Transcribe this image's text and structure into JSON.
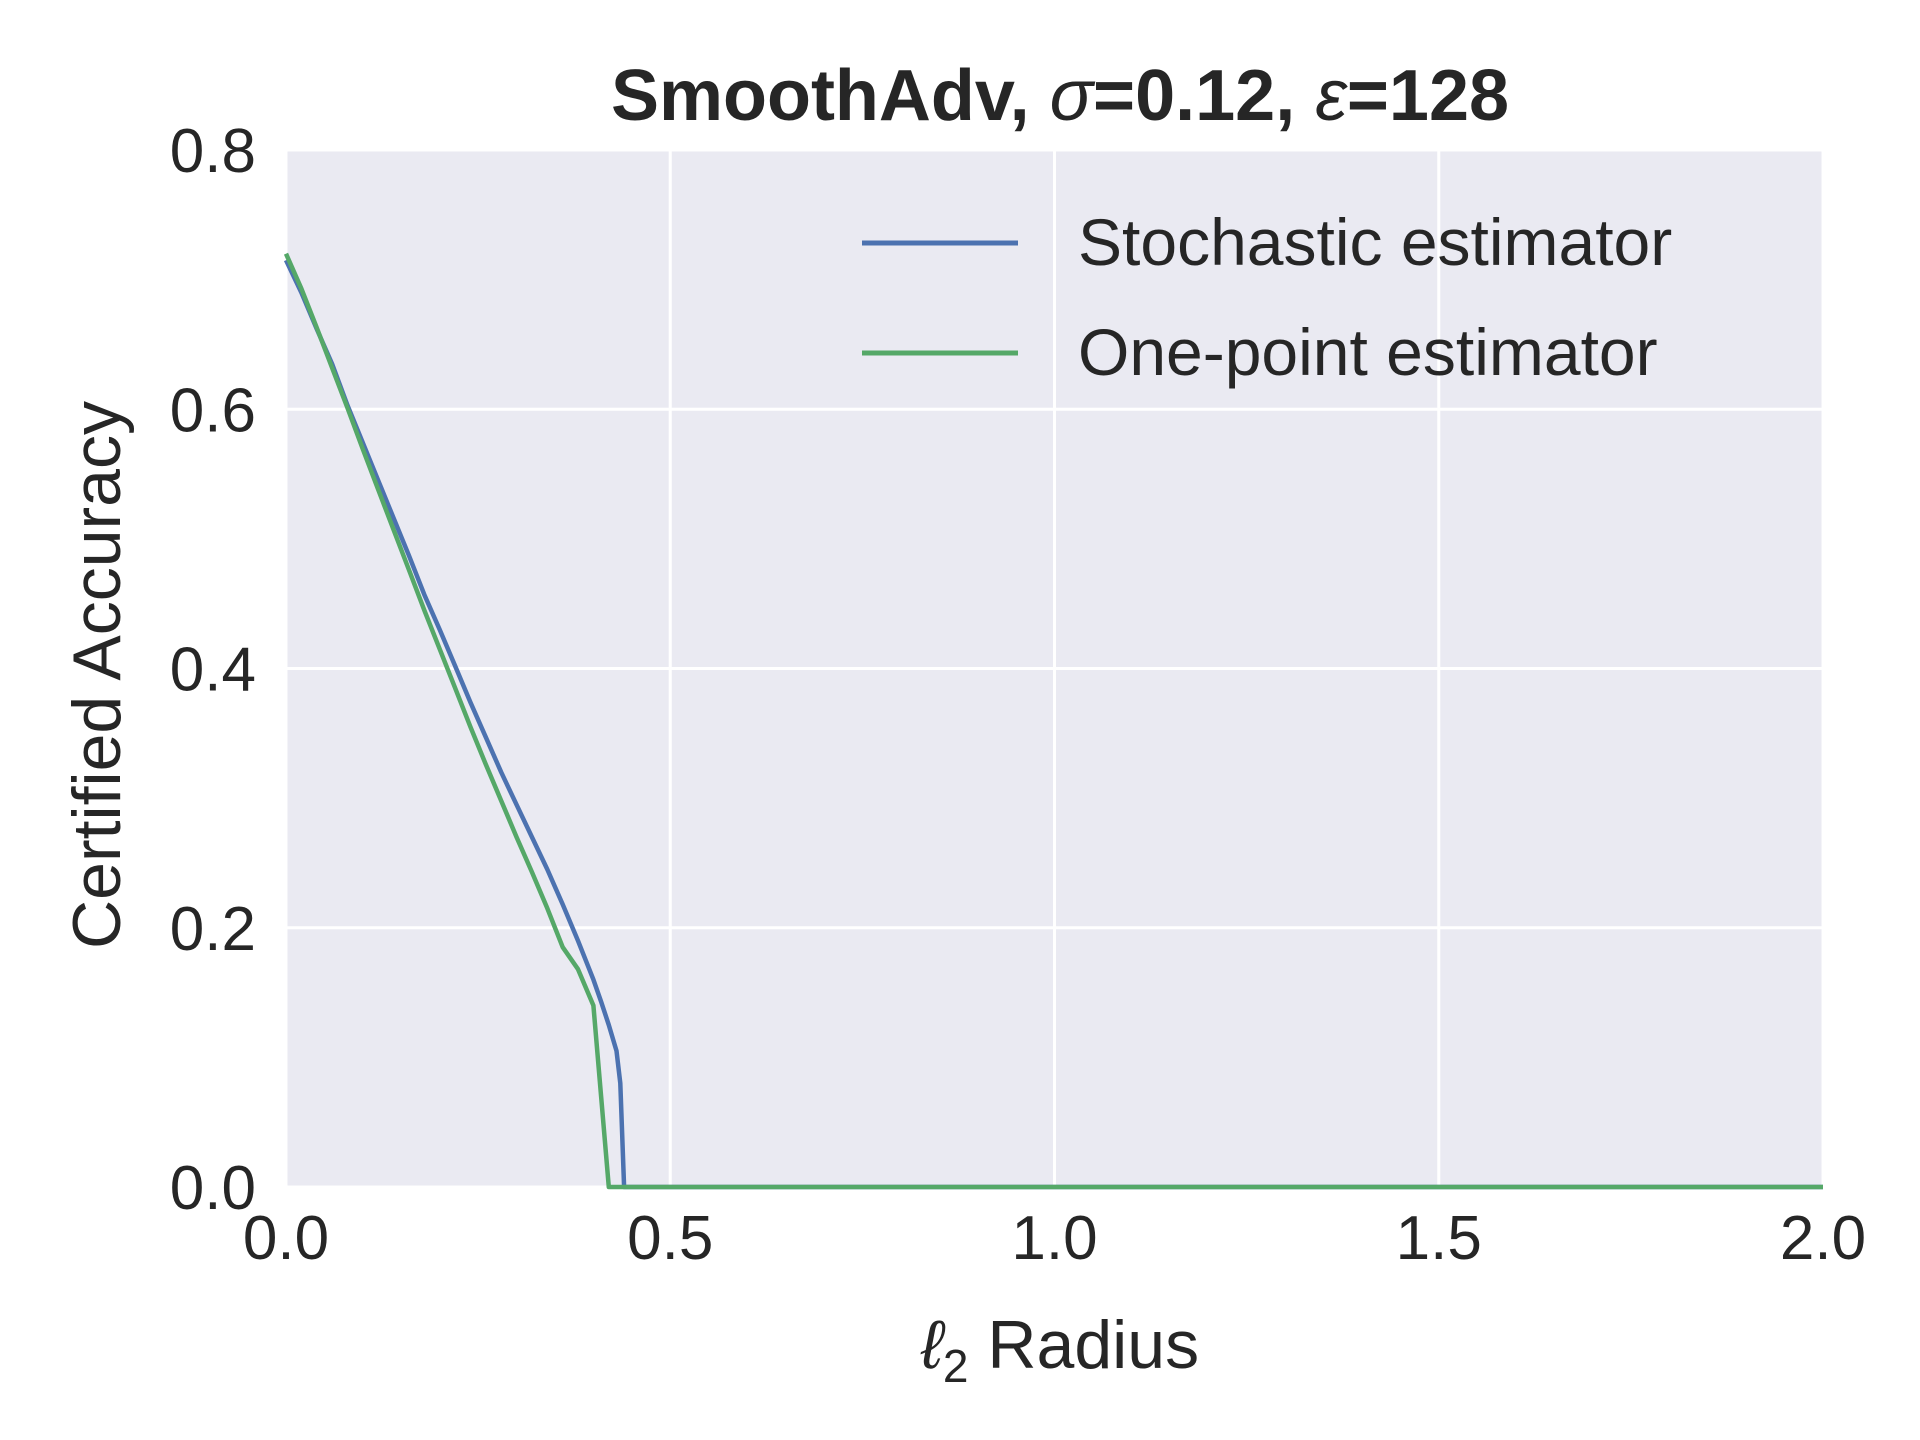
{
  "chart_data": {
    "type": "line",
    "title": {
      "prefix": "SmoothAdv, ",
      "sigma_symbol": "σ",
      "sigma_value": "=0.12, ",
      "epsilon_symbol": "ε",
      "epsilon_value": "=128"
    },
    "xlabel": {
      "symbol": "ℓ",
      "subscript": "2",
      "text": " Radius"
    },
    "ylabel": "Certified Accuracy",
    "xlim": [
      0,
      2
    ],
    "ylim": [
      0,
      0.8
    ],
    "xticks": [
      "0.0",
      "0.5",
      "1.0",
      "1.5",
      "2.0"
    ],
    "yticks": [
      "0.0",
      "0.2",
      "0.4",
      "0.6",
      "0.8"
    ],
    "grid": true,
    "legend_position": "top-right",
    "background_color": "#eaeaf2",
    "grid_color": "#ffffff",
    "series": [
      {
        "name": "Stochastic estimator",
        "color": "#4c72b0",
        "x": [
          0.0,
          0.02,
          0.04,
          0.06,
          0.08,
          0.1,
          0.12,
          0.14,
          0.16,
          0.18,
          0.2,
          0.22,
          0.24,
          0.26,
          0.28,
          0.3,
          0.32,
          0.34,
          0.36,
          0.38,
          0.4,
          0.41,
          0.42,
          0.43,
          0.435,
          0.44,
          0.45,
          2.0
        ],
        "y": [
          0.715,
          0.69,
          0.662,
          0.635,
          0.603,
          0.574,
          0.545,
          0.516,
          0.487,
          0.457,
          0.43,
          0.402,
          0.374,
          0.347,
          0.32,
          0.295,
          0.27,
          0.245,
          0.218,
          0.19,
          0.16,
          0.143,
          0.125,
          0.105,
          0.08,
          0.0,
          0.0,
          0.0
        ]
      },
      {
        "name": "One-point estimator",
        "color": "#55a868",
        "x": [
          0.0,
          0.02,
          0.04,
          0.06,
          0.08,
          0.1,
          0.12,
          0.14,
          0.16,
          0.18,
          0.2,
          0.22,
          0.24,
          0.26,
          0.28,
          0.3,
          0.32,
          0.34,
          0.36,
          0.38,
          0.4,
          0.41,
          0.42,
          0.43,
          0.44,
          0.45,
          2.0
        ],
        "y": [
          0.72,
          0.693,
          0.663,
          0.632,
          0.601,
          0.569,
          0.538,
          0.507,
          0.476,
          0.445,
          0.415,
          0.385,
          0.355,
          0.326,
          0.298,
          0.27,
          0.243,
          0.215,
          0.185,
          0.168,
          0.14,
          0.07,
          0.0,
          0.0,
          0.0,
          0.0,
          0.0
        ]
      }
    ]
  }
}
